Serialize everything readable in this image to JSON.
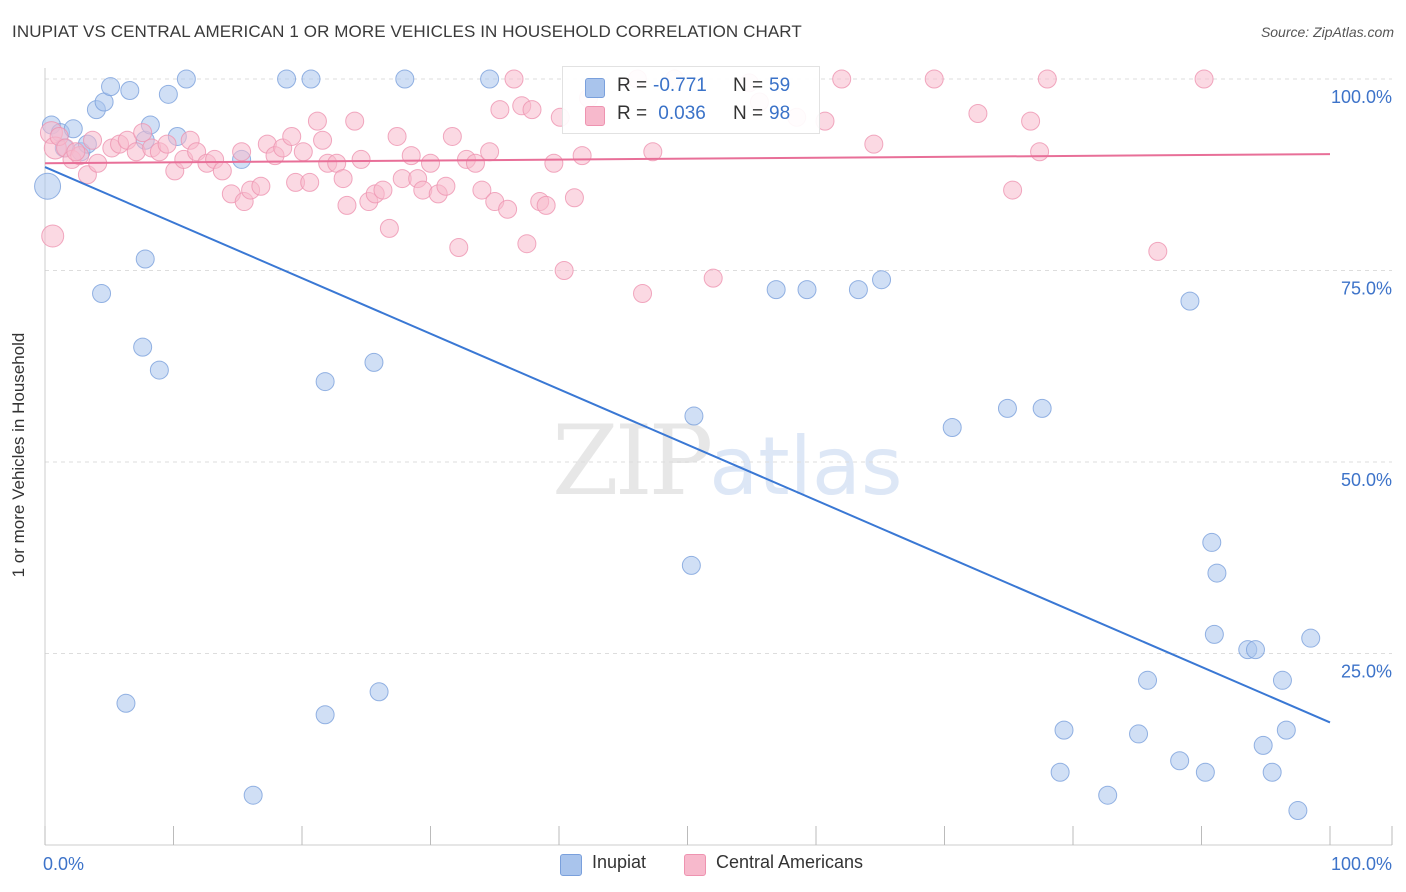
{
  "header": {
    "title": "INUPIAT VS CENTRAL AMERICAN 1 OR MORE VEHICLES IN HOUSEHOLD CORRELATION CHART",
    "source": "Source: ZipAtlas.com"
  },
  "watermark": {
    "zip": "ZIP",
    "atlas": "atlas"
  },
  "legend_top": {
    "r_label": "R = ",
    "n_label": "N = ",
    "series1": {
      "r": "-0.771",
      "n": "59"
    },
    "series2": {
      "r": " 0.036",
      "n": "98"
    }
  },
  "legend_bottom": {
    "series1": "Inupiat",
    "series2": "Central Americans"
  },
  "colors": {
    "blue_fill": "#a9c4ec",
    "blue_stroke": "#7aa0dc",
    "blue_line": "#3a78d4",
    "pink_fill": "#f7b9cc",
    "pink_stroke": "#ee93b0",
    "pink_line": "#e86f98",
    "tick_text": "#3d73c9",
    "grid": "#dddddd"
  },
  "chart_data": {
    "type": "scatter",
    "title": "INUPIAT VS CENTRAL AMERICAN 1 OR MORE VEHICLES IN HOUSEHOLD CORRELATION CHART",
    "xlabel": "",
    "ylabel": "1 or more Vehicles in Household",
    "xlim": [
      0,
      100
    ],
    "ylim": [
      0,
      100
    ],
    "x_tick_labels": [
      "0.0%",
      "100.0%"
    ],
    "y_tick_labels": [
      {
        "value": 25,
        "label": "25.0%"
      },
      {
        "value": 50,
        "label": "50.0%"
      },
      {
        "value": 75,
        "label": "75.0%"
      },
      {
        "value": 100,
        "label": "100.0%"
      }
    ],
    "series": [
      {
        "name": "Inupiat",
        "trend": {
          "x": [
            0,
            100
          ],
          "y": [
            88.5,
            16.0
          ]
        },
        "points": [
          [
            0.2,
            86,
            3
          ],
          [
            0.5,
            94,
            1
          ],
          [
            1.2,
            93,
            1
          ],
          [
            1.5,
            91,
            1
          ],
          [
            2.2,
            93.5,
            1
          ],
          [
            2.8,
            90.5,
            1
          ],
          [
            3.3,
            91.5,
            1
          ],
          [
            4,
            96,
            1
          ],
          [
            4.6,
            97,
            1
          ],
          [
            5.1,
            99,
            1
          ],
          [
            6.6,
            98.5,
            1
          ],
          [
            7.8,
            92,
            1
          ],
          [
            8.2,
            94,
            1
          ],
          [
            9.6,
            98,
            1
          ],
          [
            10.3,
            92.5,
            1
          ],
          [
            11,
            100,
            1
          ],
          [
            15.3,
            89.5,
            1
          ],
          [
            18.8,
            100,
            1
          ],
          [
            20.7,
            100,
            1
          ],
          [
            28,
            100,
            1
          ],
          [
            34.6,
            100,
            1
          ],
          [
            4.4,
            72,
            1
          ],
          [
            7.8,
            76.5,
            1
          ],
          [
            7.6,
            65,
            1
          ],
          [
            8.9,
            62,
            1
          ],
          [
            21.8,
            60.5,
            1
          ],
          [
            25.6,
            63,
            1
          ],
          [
            50.3,
            36.5,
            1
          ],
          [
            50.5,
            56,
            1
          ],
          [
            56.9,
            72.5,
            1
          ],
          [
            59.3,
            72.5,
            1
          ],
          [
            63.3,
            72.5,
            1
          ],
          [
            65.1,
            73.8,
            1
          ],
          [
            70.6,
            54.5,
            1
          ],
          [
            74.9,
            57,
            1
          ],
          [
            77.6,
            57,
            1
          ],
          [
            89.1,
            71,
            1
          ],
          [
            90.8,
            39.5,
            1
          ],
          [
            6.3,
            18.5,
            1
          ],
          [
            16.2,
            6.5,
            1
          ],
          [
            21.8,
            17,
            1
          ],
          [
            26,
            20,
            1
          ],
          [
            79.3,
            15,
            1
          ],
          [
            79,
            9.5,
            1
          ],
          [
            82.7,
            6.5,
            1
          ],
          [
            85.1,
            14.5,
            1
          ],
          [
            85.8,
            21.5,
            1
          ],
          [
            88.3,
            11,
            1
          ],
          [
            90.3,
            9.5,
            1
          ],
          [
            91.2,
            35.5,
            1
          ],
          [
            91,
            27.5,
            1
          ],
          [
            93.6,
            25.5,
            1
          ],
          [
            94.2,
            25.5,
            1
          ],
          [
            94.8,
            13,
            1
          ],
          [
            95.5,
            9.5,
            1
          ],
          [
            96.3,
            21.5,
            1
          ],
          [
            96.6,
            15,
            1
          ],
          [
            98.5,
            27,
            1
          ],
          [
            97.5,
            4.5,
            1
          ]
        ]
      },
      {
        "name": "Central Americans",
        "trend": {
          "x": [
            0,
            100
          ],
          "y": [
            89.0,
            90.2
          ]
        },
        "points": [
          [
            0.5,
            93,
            2
          ],
          [
            0.8,
            91,
            2
          ],
          [
            1.1,
            92.5,
            1
          ],
          [
            1.6,
            91,
            1
          ],
          [
            2.1,
            89.5,
            1
          ],
          [
            2.7,
            90,
            1
          ],
          [
            3.3,
            87.5,
            1
          ],
          [
            3.7,
            92,
            1
          ],
          [
            4.1,
            89,
            1
          ],
          [
            5.2,
            91,
            1
          ],
          [
            5.8,
            91.5,
            1
          ],
          [
            6.4,
            92,
            1
          ],
          [
            7.1,
            90.5,
            1
          ],
          [
            7.6,
            93,
            1
          ],
          [
            8.3,
            91,
            1
          ],
          [
            8.9,
            90.5,
            1
          ],
          [
            9.5,
            91.5,
            1
          ],
          [
            10.1,
            88,
            1
          ],
          [
            10.8,
            89.5,
            1
          ],
          [
            11.3,
            92,
            1
          ],
          [
            11.8,
            90.5,
            1
          ],
          [
            12.6,
            89,
            1
          ],
          [
            13.2,
            89.5,
            1
          ],
          [
            13.8,
            88,
            1
          ],
          [
            14.5,
            85,
            1
          ],
          [
            15.3,
            90.5,
            1
          ],
          [
            15.5,
            84,
            1
          ],
          [
            16,
            85.5,
            1
          ],
          [
            16.8,
            86,
            1
          ],
          [
            17.3,
            91.5,
            1
          ],
          [
            17.9,
            90,
            1
          ],
          [
            18.5,
            91,
            1
          ],
          [
            19.2,
            92.5,
            1
          ],
          [
            19.5,
            86.5,
            1
          ],
          [
            20.1,
            90.5,
            1
          ],
          [
            20.6,
            86.5,
            1
          ],
          [
            21.2,
            94.5,
            1
          ],
          [
            21.6,
            92,
            1
          ],
          [
            22,
            89,
            1
          ],
          [
            22.7,
            89,
            1
          ],
          [
            23.2,
            87,
            1
          ],
          [
            23.5,
            83.5,
            1
          ],
          [
            24.1,
            94.5,
            1
          ],
          [
            24.6,
            89.5,
            1
          ],
          [
            25.2,
            84,
            1
          ],
          [
            25.7,
            85,
            1
          ],
          [
            26.3,
            85.5,
            1
          ],
          [
            26.8,
            80.5,
            1
          ],
          [
            27.4,
            92.5,
            1
          ],
          [
            27.8,
            87,
            1
          ],
          [
            28.5,
            90,
            1
          ],
          [
            29,
            87,
            1
          ],
          [
            29.4,
            85.5,
            1
          ],
          [
            30,
            89,
            1
          ],
          [
            30.6,
            85,
            1
          ],
          [
            31.2,
            86,
            1
          ],
          [
            31.7,
            92.5,
            1
          ],
          [
            32.2,
            78,
            1
          ],
          [
            32.8,
            89.5,
            1
          ],
          [
            33.5,
            89,
            1
          ],
          [
            34,
            85.5,
            1
          ],
          [
            34.6,
            90.5,
            1
          ],
          [
            35,
            84,
            1
          ],
          [
            35.4,
            96,
            1
          ],
          [
            36,
            83,
            1
          ],
          [
            36.5,
            100,
            1
          ],
          [
            37.1,
            96.5,
            1
          ],
          [
            37.5,
            78.5,
            1
          ],
          [
            37.9,
            96,
            1
          ],
          [
            38.5,
            84,
            1
          ],
          [
            39,
            83.5,
            1
          ],
          [
            39.6,
            89,
            1
          ],
          [
            40.1,
            95,
            1
          ],
          [
            40.4,
            75,
            1
          ],
          [
            41.2,
            84.5,
            1
          ],
          [
            41.8,
            90,
            1
          ],
          [
            42.3,
            97.5,
            1
          ],
          [
            46.5,
            72,
            1
          ],
          [
            46.1,
            100,
            1
          ],
          [
            47.3,
            90.5,
            1
          ],
          [
            49,
            100,
            1
          ],
          [
            52,
            74,
            1
          ],
          [
            54.8,
            99.5,
            1
          ],
          [
            55.6,
            97,
            1
          ],
          [
            58.5,
            95,
            1
          ],
          [
            60.7,
            94.5,
            1
          ],
          [
            62,
            100,
            1
          ],
          [
            64.5,
            91.5,
            1
          ],
          [
            69.2,
            100,
            1
          ],
          [
            72.6,
            95.5,
            1
          ],
          [
            75.3,
            85.5,
            1
          ],
          [
            76.7,
            94.5,
            1
          ],
          [
            77.4,
            90.5,
            1
          ],
          [
            78,
            100,
            1
          ],
          [
            86.6,
            77.5,
            1
          ],
          [
            90.2,
            100,
            1
          ],
          [
            0.6,
            79.5,
            2
          ],
          [
            2.4,
            90.5,
            1
          ]
        ]
      }
    ]
  }
}
